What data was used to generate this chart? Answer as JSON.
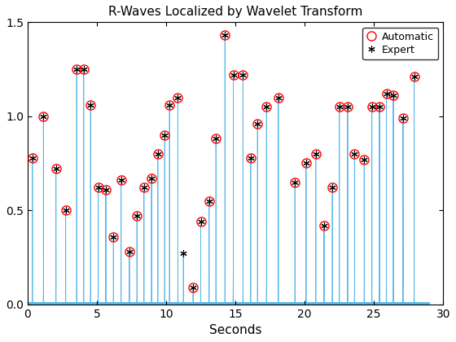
{
  "title": "R-Waves Localized by Wavelet Transform",
  "xlabel": "Seconds",
  "xlim": [
    0,
    30
  ],
  "ylim": [
    0,
    1.5
  ],
  "yticks": [
    0,
    0.5,
    1.0,
    1.5
  ],
  "xticks": [
    0,
    5,
    10,
    15,
    20,
    25,
    30
  ],
  "signal_color": "#5BB8E8",
  "auto_color": "#FF0000",
  "expert_color": "#000000",
  "peaks_x": [
    0.35,
    1.15,
    2.05,
    2.75,
    3.55,
    4.05,
    4.55,
    5.1,
    5.65,
    6.2,
    6.75,
    7.35,
    7.9,
    8.4,
    8.95,
    9.4,
    9.9,
    10.25,
    10.85,
    11.25,
    11.95,
    12.5,
    13.1,
    13.6,
    14.25,
    14.85,
    15.55,
    16.1,
    16.6,
    17.25,
    18.1,
    19.3,
    20.1,
    20.8,
    21.4,
    22.0,
    22.5,
    23.1,
    23.6,
    24.3,
    24.85,
    25.4,
    25.9,
    26.4,
    27.1,
    27.9
  ],
  "peaks_y": [
    0.78,
    1.0,
    0.72,
    0.5,
    1.25,
    1.25,
    1.06,
    0.62,
    0.61,
    0.36,
    0.66,
    0.28,
    0.47,
    0.62,
    0.67,
    0.8,
    0.9,
    1.06,
    1.1,
    0.27,
    0.09,
    0.44,
    0.55,
    0.88,
    1.43,
    1.22,
    1.22,
    0.78,
    0.96,
    1.05,
    1.1,
    0.65,
    0.75,
    0.8,
    0.42,
    0.62,
    1.05,
    1.05,
    0.8,
    0.77,
    1.05,
    1.05,
    1.12,
    1.11,
    0.99,
    1.21
  ],
  "auto_x": [
    0.35,
    1.15,
    2.05,
    2.75,
    3.55,
    4.05,
    4.55,
    5.1,
    5.65,
    6.2,
    6.75,
    7.35,
    7.9,
    8.4,
    8.95,
    9.4,
    9.9,
    10.25,
    10.85,
    11.95,
    12.5,
    13.1,
    13.6,
    14.25,
    14.85,
    15.55,
    16.1,
    16.6,
    17.25,
    18.1,
    19.3,
    20.1,
    20.8,
    21.4,
    22.0,
    22.5,
    23.1,
    23.6,
    24.3,
    24.85,
    25.4,
    25.9,
    26.4,
    27.1,
    27.9
  ],
  "auto_y": [
    0.78,
    1.0,
    0.72,
    0.5,
    1.25,
    1.25,
    1.06,
    0.62,
    0.61,
    0.36,
    0.66,
    0.28,
    0.47,
    0.62,
    0.67,
    0.8,
    0.9,
    1.06,
    1.1,
    0.09,
    0.44,
    0.55,
    0.88,
    1.43,
    1.22,
    1.22,
    0.78,
    0.96,
    1.05,
    1.1,
    0.65,
    0.75,
    0.8,
    0.42,
    0.62,
    1.05,
    1.05,
    0.8,
    0.77,
    1.05,
    1.05,
    1.12,
    1.11,
    0.99,
    1.21
  ],
  "expert_x": [
    0.35,
    1.15,
    2.05,
    2.75,
    3.55,
    4.05,
    4.55,
    5.1,
    5.65,
    6.2,
    6.75,
    7.35,
    7.9,
    8.4,
    8.95,
    9.4,
    9.9,
    10.25,
    10.85,
    11.25,
    11.95,
    12.5,
    13.1,
    13.6,
    14.25,
    14.85,
    15.55,
    16.1,
    16.6,
    17.25,
    18.1,
    19.3,
    20.1,
    20.8,
    21.4,
    22.0,
    22.5,
    23.1,
    23.6,
    24.3,
    24.85,
    25.4,
    25.9,
    26.4,
    27.1,
    27.9
  ],
  "expert_y": [
    0.78,
    1.0,
    0.72,
    0.5,
    1.25,
    1.25,
    1.06,
    0.62,
    0.61,
    0.36,
    0.66,
    0.28,
    0.47,
    0.62,
    0.67,
    0.8,
    0.9,
    1.06,
    1.1,
    0.27,
    0.09,
    0.44,
    0.55,
    0.88,
    1.43,
    1.22,
    1.22,
    0.78,
    0.96,
    1.05,
    1.1,
    0.65,
    0.75,
    0.8,
    0.42,
    0.62,
    1.05,
    1.05,
    0.8,
    0.77,
    1.05,
    1.05,
    1.12,
    1.11,
    0.99,
    1.21
  ],
  "figsize": [
    5.6,
    4.2
  ],
  "dpi": 100
}
